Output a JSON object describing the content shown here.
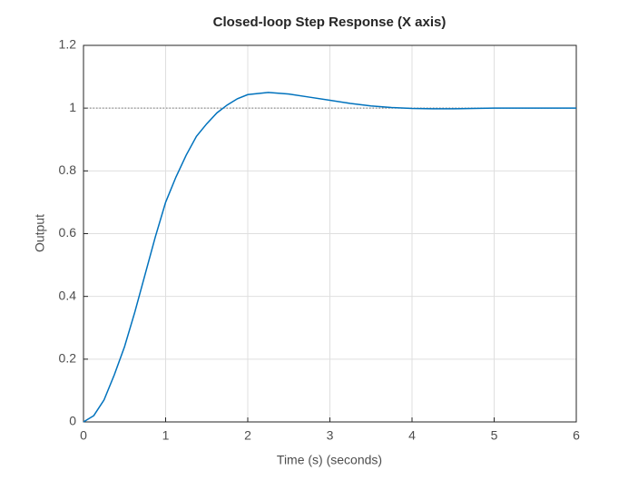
{
  "chart_data": {
    "type": "line",
    "title": "Closed-loop Step Response (X axis)",
    "x_label": "Time (s) (seconds)",
    "y_label": "Output",
    "x": [
      0,
      0.125,
      0.25,
      0.375,
      0.5,
      0.625,
      0.75,
      0.875,
      1.0,
      1.125,
      1.25,
      1.375,
      1.5,
      1.625,
      1.75,
      1.875,
      2.0,
      2.25,
      2.5,
      2.75,
      3.0,
      3.25,
      3.5,
      3.75,
      4.0,
      4.25,
      4.5,
      4.75,
      5.0,
      5.5,
      6.0
    ],
    "series": [
      {
        "color": "#0072bd",
        "values": [
          0,
          0.02,
          0.07,
          0.15,
          0.24,
          0.35,
          0.47,
          0.59,
          0.7,
          0.78,
          0.85,
          0.91,
          0.95,
          0.985,
          1.01,
          1.03,
          1.043,
          1.05,
          1.045,
          1.035,
          1.025,
          1.015,
          1.007,
          1.002,
          0.999,
          0.998,
          0.998,
          0.999,
          1.0,
          1.0,
          1.0
        ]
      }
    ],
    "reference_y": 1,
    "xlim": [
      0,
      6
    ],
    "xticks": [
      0,
      1,
      2,
      3,
      4,
      5,
      6
    ],
    "ylim": [
      0,
      1.2
    ],
    "yticks": [
      0,
      0.2,
      0.4,
      0.6,
      0.8,
      1,
      1.2
    ],
    "grid": true
  }
}
